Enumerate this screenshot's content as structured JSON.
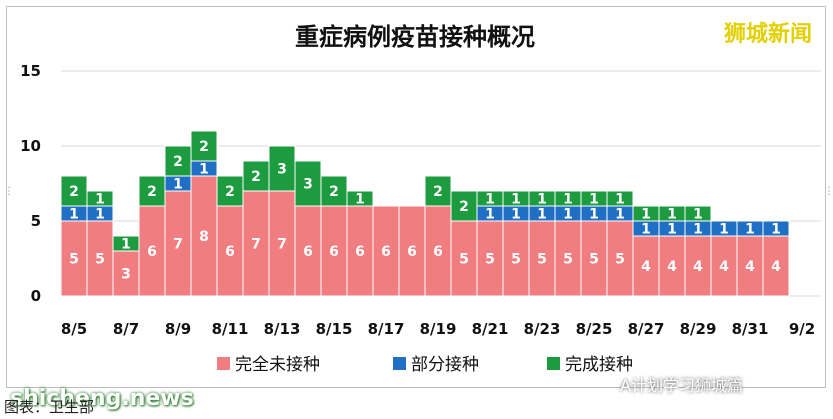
{
  "brand": "狮城新闻",
  "watermark": "shicheng.news",
  "wechat_label": "A计划学习狮城篇",
  "caption": "图表：卫生部",
  "colors": {
    "unvaccinated": "#f07e80",
    "partial": "#1f6fc5",
    "full": "#1c9b3f"
  },
  "chart_data": {
    "type": "bar",
    "stacked": true,
    "title": "重症病例疫苗接种概况",
    "categories": [
      "8/5",
      "8/6",
      "8/7",
      "8/8",
      "8/9",
      "8/10",
      "8/11",
      "8/12",
      "8/13",
      "8/14",
      "8/15",
      "8/16",
      "8/17",
      "8/18",
      "8/19",
      "8/20",
      "8/21",
      "8/22",
      "8/23",
      "8/24",
      "8/25",
      "8/26",
      "8/27",
      "8/28",
      "8/29",
      "8/30",
      "8/31",
      "9/1"
    ],
    "x_tick_labels": [
      "8/5",
      "8/7",
      "8/9",
      "8/11",
      "8/13",
      "8/15",
      "8/17",
      "8/19",
      "8/21",
      "8/23",
      "8/25",
      "8/27",
      "8/29",
      "8/31",
      "9/2"
    ],
    "ylim": [
      0,
      15
    ],
    "y_ticks": [
      "0",
      "5",
      "10",
      "15"
    ],
    "grid": true,
    "legend_position": "bottom",
    "series": [
      {
        "name": "完全未接种",
        "values": [
          5,
          5,
          3,
          6,
          7,
          8,
          6,
          7,
          7,
          6,
          6,
          6,
          6,
          6,
          6,
          5,
          5,
          5,
          5,
          5,
          5,
          5,
          4,
          4,
          4,
          4,
          4,
          4
        ]
      },
      {
        "name": "部分接种",
        "values": [
          1,
          1,
          0,
          0,
          1,
          1,
          0,
          0,
          0,
          0,
          0,
          0,
          0,
          0,
          0,
          0,
          1,
          1,
          1,
          1,
          1,
          1,
          1,
          1,
          1,
          1,
          1,
          1
        ]
      },
      {
        "name": "完成接种",
        "values": [
          2,
          1,
          1,
          2,
          2,
          2,
          2,
          2,
          3,
          3,
          2,
          1,
          0,
          0,
          2,
          2,
          1,
          1,
          1,
          1,
          1,
          1,
          1,
          1,
          1,
          0,
          0,
          0
        ]
      }
    ]
  }
}
